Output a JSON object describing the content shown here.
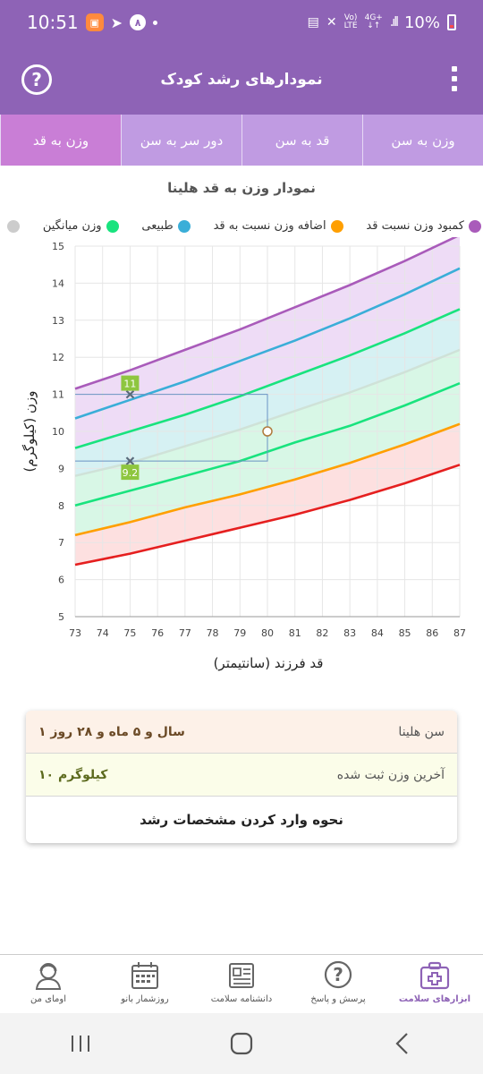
{
  "status_bar": {
    "time": "10:51",
    "battery": "10%",
    "badge_digit": "۸",
    "net_vo": "Vo)",
    "net_lte": "LTE",
    "net_4g": "4G+"
  },
  "app_bar": {
    "title": "نمودارهای رشد کودک"
  },
  "tabs": [
    {
      "label": "وزن به سن",
      "active": false
    },
    {
      "label": "قد به سن",
      "active": false
    },
    {
      "label": "دور سر به سن",
      "active": false
    },
    {
      "label": "وزن به قد",
      "active": true
    }
  ],
  "chart_title": "نمودار وزن به قد هلینا",
  "legend": [
    {
      "label": "کمبود وزن نسبت قد",
      "color": "#a95bba"
    },
    {
      "label": "اضافه وزن نسبت به قد",
      "color": "#ff9f00"
    },
    {
      "label": "طبیعی",
      "color": "#3aaed8"
    },
    {
      "label": "وزن میانگین",
      "color": "#19e37e"
    },
    {
      "label": "",
      "color": "#cccccc"
    }
  ],
  "chart_data": {
    "type": "line",
    "xlabel": "قد فرزند (سانتیمتر)",
    "ylabel": "وزن (کیلوگرم)",
    "xlim": [
      73,
      87
    ],
    "ylim": [
      5,
      15
    ],
    "x_ticks": [
      73,
      74,
      75,
      76,
      77,
      78,
      79,
      80,
      81,
      82,
      83,
      84,
      85,
      86,
      87
    ],
    "y_ticks": [
      5,
      6,
      7,
      8,
      9,
      10,
      11,
      12,
      13,
      14,
      15
    ],
    "grid": true,
    "x": [
      73,
      75,
      77,
      79,
      81,
      83,
      85,
      87
    ],
    "series": [
      {
        "color": "#e51f1f",
        "fill": "#fde0e0",
        "values": [
          6.4,
          6.7,
          7.05,
          7.4,
          7.75,
          8.15,
          8.6,
          9.1
        ]
      },
      {
        "color": "#ff9f00",
        "fill": "#fdecd3",
        "values": [
          7.2,
          7.55,
          7.95,
          8.3,
          8.7,
          9.15,
          9.65,
          10.2
        ]
      },
      {
        "color": "#19e37e",
        "fill": "#d8f7e6",
        "values": [
          8.0,
          8.4,
          8.8,
          9.2,
          9.7,
          10.15,
          10.7,
          11.3
        ]
      },
      {
        "color": "#cfe2d8",
        "fill": "#d8f7e6",
        "values": [
          8.8,
          9.15,
          9.6,
          10.05,
          10.55,
          11.05,
          11.6,
          12.2
        ]
      },
      {
        "color": "#19e37e",
        "fill": "#d6f1f3",
        "values": [
          9.55,
          10.0,
          10.45,
          10.95,
          11.5,
          12.05,
          12.65,
          13.3
        ]
      },
      {
        "color": "#3aaed8",
        "fill": "#eedcf6",
        "values": [
          10.35,
          10.85,
          11.35,
          11.9,
          12.45,
          13.05,
          13.7,
          14.4
        ]
      },
      {
        "color": "#a95bba",
        "fill": null,
        "values": [
          11.15,
          11.65,
          12.2,
          12.75,
          13.35,
          13.95,
          14.6,
          15.3
        ]
      }
    ],
    "markers": [
      {
        "x": 75,
        "y": 11,
        "label": "11"
      },
      {
        "x": 75,
        "y": 9.2,
        "label": "9.2"
      }
    ],
    "reference_point": {
      "x": 80,
      "y": 10
    }
  },
  "info_card": {
    "age_label": "سن هلینا",
    "age_value": "۱ سال و ۵ ماه و ۲۸ روز",
    "weight_label": "آخرین وزن ثبت شده",
    "weight_value": "۱۰ کیلوگرم",
    "link_label": "نحوه وارد کردن مشخصات رشد"
  },
  "bottom_nav": [
    {
      "label": "ابزارهای سلامت",
      "icon": "health-tools-icon",
      "active": true
    },
    {
      "label": "پرسش و پاسخ",
      "icon": "question-icon",
      "active": false
    },
    {
      "label": "دانشنامه سلامت",
      "icon": "encyclopedia-icon",
      "active": false
    },
    {
      "label": "روزشمار بانو",
      "icon": "calendar-icon",
      "active": false
    },
    {
      "label": "اومای من",
      "icon": "profile-icon",
      "active": false
    }
  ]
}
